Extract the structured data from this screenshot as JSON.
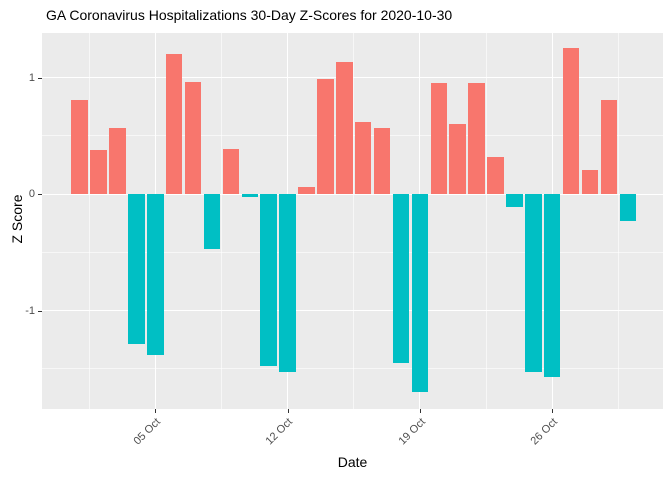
{
  "chart_data": {
    "type": "bar",
    "title": "GA Coronavirus Hospitalizations 30-Day Z-Scores for 2020-10-30",
    "xlabel": "Date",
    "ylabel": "Z Score",
    "grid": "on",
    "legend_position": "none",
    "panel_background": "#EBEBEB",
    "gridline_color": "#FFFFFF",
    "positive_color": "#F8766D",
    "negative_color": "#00BFC4",
    "axis_text_color": "#4D4D4D",
    "tick_mark_color": "#333333",
    "ylim": [
      -1.85,
      1.38
    ],
    "y_ticks": [
      1,
      0,
      -1
    ],
    "y_tick_labels": [
      "1",
      "0",
      "-1"
    ],
    "y_minor_ticks": [
      0.5,
      -0.5,
      -1.5
    ],
    "x_ticks": [
      {
        "day": 5,
        "label": "05 Oct"
      },
      {
        "day": 12,
        "label": "12 Oct"
      },
      {
        "day": 19,
        "label": "19 Oct"
      },
      {
        "day": 26,
        "label": "26 Oct"
      }
    ],
    "x_minor_tick_days": [
      1.5,
      8.5,
      15.5,
      22.5,
      29.5
    ],
    "dates": [
      "2020-10-01",
      "2020-10-02",
      "2020-10-03",
      "2020-10-04",
      "2020-10-05",
      "2020-10-06",
      "2020-10-07",
      "2020-10-08",
      "2020-10-09",
      "2020-10-10",
      "2020-10-11",
      "2020-10-12",
      "2020-10-13",
      "2020-10-14",
      "2020-10-15",
      "2020-10-16",
      "2020-10-17",
      "2020-10-18",
      "2020-10-19",
      "2020-10-20",
      "2020-10-21",
      "2020-10-22",
      "2020-10-23",
      "2020-10-24",
      "2020-10-25",
      "2020-10-26",
      "2020-10-27",
      "2020-10-28",
      "2020-10-29",
      "2020-10-30"
    ],
    "values": [
      0.81,
      0.38,
      0.57,
      -1.29,
      -1.38,
      1.2,
      0.96,
      -0.47,
      0.39,
      -0.03,
      -1.48,
      -1.53,
      0.06,
      0.99,
      1.13,
      0.62,
      0.57,
      -1.45,
      -1.7,
      0.95,
      0.6,
      0.95,
      0.32,
      -0.11,
      -1.53,
      -1.57,
      1.25,
      0.21,
      0.81,
      -0.23
    ]
  }
}
